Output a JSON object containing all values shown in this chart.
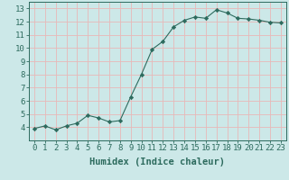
{
  "x": [
    0,
    1,
    2,
    3,
    4,
    5,
    6,
    7,
    8,
    9,
    10,
    11,
    12,
    13,
    14,
    15,
    16,
    17,
    18,
    19,
    20,
    21,
    22,
    23
  ],
  "y": [
    3.9,
    4.1,
    3.8,
    4.1,
    4.3,
    4.9,
    4.7,
    4.4,
    4.5,
    6.3,
    8.0,
    9.9,
    10.5,
    11.6,
    12.1,
    12.35,
    12.25,
    12.9,
    12.65,
    12.25,
    12.2,
    12.1,
    11.95,
    11.9
  ],
  "line_color": "#2d6b5e",
  "marker": "D",
  "marker_size": 2.2,
  "bg_color": "#cce8e8",
  "grid_color": "#e8b8b8",
  "xlabel": "Humidex (Indice chaleur)",
  "xlabel_fontsize": 7.5,
  "tick_fontsize": 6.5,
  "ylim": [
    3,
    13.5
  ],
  "yticks": [
    4,
    5,
    6,
    7,
    8,
    9,
    10,
    11,
    12,
    13
  ],
  "xticks": [
    0,
    1,
    2,
    3,
    4,
    5,
    6,
    7,
    8,
    9,
    10,
    11,
    12,
    13,
    14,
    15,
    16,
    17,
    18,
    19,
    20,
    21,
    22,
    23
  ]
}
